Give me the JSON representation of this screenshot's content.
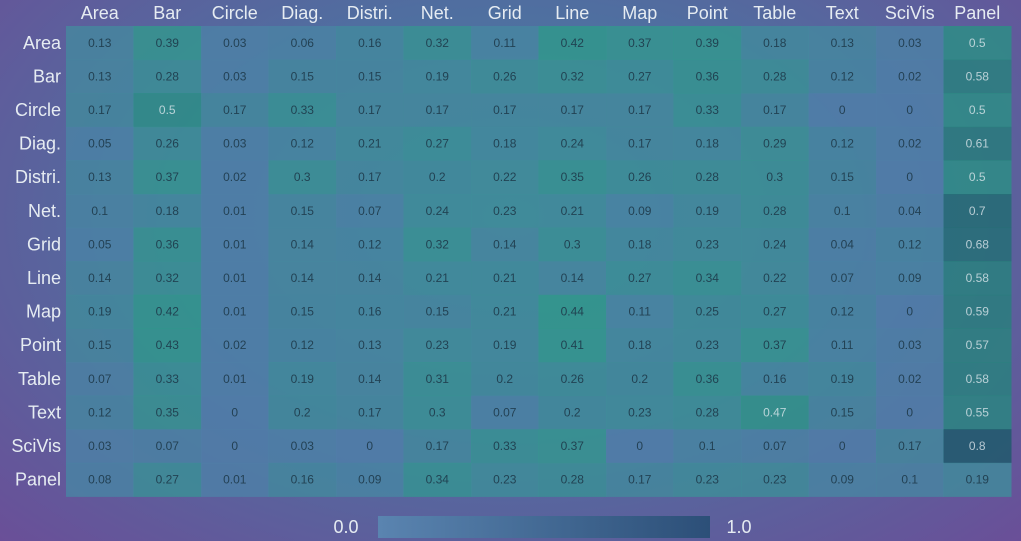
{
  "chart_data": {
    "type": "heatmap",
    "columns": [
      "Area",
      "Bar",
      "Circle",
      "Diag.",
      "Distri.",
      "Net.",
      "Grid",
      "Line",
      "Map",
      "Point",
      "Table",
      "Text",
      "SciVis",
      "Panel"
    ],
    "rows": [
      "Area",
      "Bar",
      "Circle",
      "Diag.",
      "Distri.",
      "Net.",
      "Grid",
      "Line",
      "Map",
      "Point",
      "Table",
      "Text",
      "SciVis",
      "Panel"
    ],
    "values": [
      [
        0.13,
        0.39,
        0.03,
        0.06,
        0.16,
        0.32,
        0.11,
        0.42,
        0.37,
        0.39,
        0.18,
        0.13,
        0.03,
        0.5
      ],
      [
        0.13,
        0.28,
        0.03,
        0.15,
        0.15,
        0.19,
        0.26,
        0.32,
        0.27,
        0.36,
        0.28,
        0.12,
        0.02,
        0.58
      ],
      [
        0.17,
        0.5,
        0.17,
        0.33,
        0.17,
        0.17,
        0.17,
        0.17,
        0.17,
        0.33,
        0.17,
        0,
        0,
        0.5
      ],
      [
        0.05,
        0.26,
        0.03,
        0.12,
        0.21,
        0.27,
        0.18,
        0.24,
        0.17,
        0.18,
        0.29,
        0.12,
        0.02,
        0.61
      ],
      [
        0.13,
        0.37,
        0.02,
        0.3,
        0.17,
        0.2,
        0.22,
        0.35,
        0.26,
        0.28,
        0.3,
        0.15,
        0,
        0.5
      ],
      [
        0.1,
        0.18,
        0.01,
        0.15,
        0.07,
        0.24,
        0.23,
        0.21,
        0.09,
        0.19,
        0.28,
        0.1,
        0.04,
        0.7
      ],
      [
        0.05,
        0.36,
        0.01,
        0.14,
        0.12,
        0.32,
        0.14,
        0.3,
        0.18,
        0.23,
        0.24,
        0.04,
        0.12,
        0.68
      ],
      [
        0.14,
        0.32,
        0.01,
        0.14,
        0.14,
        0.21,
        0.21,
        0.14,
        0.27,
        0.34,
        0.22,
        0.07,
        0.09,
        0.58
      ],
      [
        0.19,
        0.42,
        0.01,
        0.15,
        0.16,
        0.15,
        0.21,
        0.44,
        0.11,
        0.25,
        0.27,
        0.12,
        0,
        0.59
      ],
      [
        0.15,
        0.43,
        0.02,
        0.12,
        0.13,
        0.23,
        0.19,
        0.41,
        0.18,
        0.23,
        0.37,
        0.11,
        0.03,
        0.57
      ],
      [
        0.07,
        0.33,
        0.01,
        0.19,
        0.14,
        0.31,
        0.2,
        0.26,
        0.2,
        0.36,
        0.16,
        0.19,
        0.02,
        0.58
      ],
      [
        0.12,
        0.35,
        0,
        0.2,
        0.17,
        0.3,
        0.07,
        0.2,
        0.23,
        0.28,
        0.47,
        0.15,
        0,
        0.55
      ],
      [
        0.03,
        0.07,
        0,
        0.03,
        0,
        0.17,
        0.33,
        0.37,
        0,
        0.1,
        0.07,
        0,
        0.17,
        0.8
      ],
      [
        0.08,
        0.27,
        0.01,
        0.16,
        0.09,
        0.34,
        0.23,
        0.28,
        0.17,
        0.23,
        0.23,
        0.09,
        0.1,
        0.19
      ]
    ],
    "value_labels": [
      [
        "0.13",
        "0.39",
        "0.03",
        "0.06",
        "0.16",
        "0.32",
        "0.11",
        "0.42",
        "0.37",
        "0.39",
        "0.18",
        "0.13",
        "0.03",
        "0.5"
      ],
      [
        "0.13",
        "0.28",
        "0.03",
        "0.15",
        "0.15",
        "0.19",
        "0.26",
        "0.32",
        "0.27",
        "0.36",
        "0.28",
        "0.12",
        "0.02",
        "0.58"
      ],
      [
        "0.17",
        "0.5",
        "0.17",
        "0.33",
        "0.17",
        "0.17",
        "0.17",
        "0.17",
        "0.17",
        "0.33",
        "0.17",
        "0",
        "0",
        "0.5"
      ],
      [
        "0.05",
        "0.26",
        "0.03",
        "0.12",
        "0.21",
        "0.27",
        "0.18",
        "0.24",
        "0.17",
        "0.18",
        "0.29",
        "0.12",
        "0.02",
        "0.61"
      ],
      [
        "0.13",
        "0.37",
        "0.02",
        "0.3",
        "0.17",
        "0.2",
        "0.22",
        "0.35",
        "0.26",
        "0.28",
        "0.3",
        "0.15",
        "0",
        "0.5"
      ],
      [
        "0.1",
        "0.18",
        "0.01",
        "0.15",
        "0.07",
        "0.24",
        "0.23",
        "0.21",
        "0.09",
        "0.19",
        "0.28",
        "0.1",
        "0.04",
        "0.7"
      ],
      [
        "0.05",
        "0.36",
        "0.01",
        "0.14",
        "0.12",
        "0.32",
        "0.14",
        "0.3",
        "0.18",
        "0.23",
        "0.24",
        "0.04",
        "0.12",
        "0.68"
      ],
      [
        "0.14",
        "0.32",
        "0.01",
        "0.14",
        "0.14",
        "0.21",
        "0.21",
        "0.14",
        "0.27",
        "0.34",
        "0.22",
        "0.07",
        "0.09",
        "0.58"
      ],
      [
        "0.19",
        "0.42",
        "0.01",
        "0.15",
        "0.16",
        "0.15",
        "0.21",
        "0.44",
        "0.11",
        "0.25",
        "0.27",
        "0.12",
        "0",
        "0.59"
      ],
      [
        "0.15",
        "0.43",
        "0.02",
        "0.12",
        "0.13",
        "0.23",
        "0.19",
        "0.41",
        "0.18",
        "0.23",
        "0.37",
        "0.11",
        "0.03",
        "0.57"
      ],
      [
        "0.07",
        "0.33",
        "0.01",
        "0.19",
        "0.14",
        "0.31",
        "0.2",
        "0.26",
        "0.2",
        "0.36",
        "0.16",
        "0.19",
        "0.02",
        "0.58"
      ],
      [
        "0.12",
        "0.35",
        "0",
        "0.2",
        "0.17",
        "0.3",
        "0.07",
        "0.2",
        "0.23",
        "0.28",
        "0.47",
        "0.15",
        "0",
        "0.55"
      ],
      [
        "0.03",
        "0.07",
        "0",
        "0.03",
        "0",
        "0.17",
        "0.33",
        "0.37",
        "0",
        "0.1",
        "0.07",
        "0",
        "0.17",
        "0.8"
      ],
      [
        "0.08",
        "0.27",
        "0.01",
        "0.16",
        "0.09",
        "0.34",
        "0.23",
        "0.28",
        "0.17",
        "0.23",
        "0.23",
        "0.09",
        "0.1",
        "0.19"
      ]
    ],
    "colorbar": {
      "min_label": "0.0",
      "max_label": "1.0",
      "range": [
        0,
        1
      ]
    },
    "colors": {
      "low": "#4f7fa8",
      "mid": "#2f9a8a",
      "high": "#1d5a6a",
      "colorbar_left": "#5a84b0",
      "colorbar_right": "#2c4f78",
      "text_light": "#e6ecf2",
      "text_dark": "#1e3a4a"
    }
  }
}
